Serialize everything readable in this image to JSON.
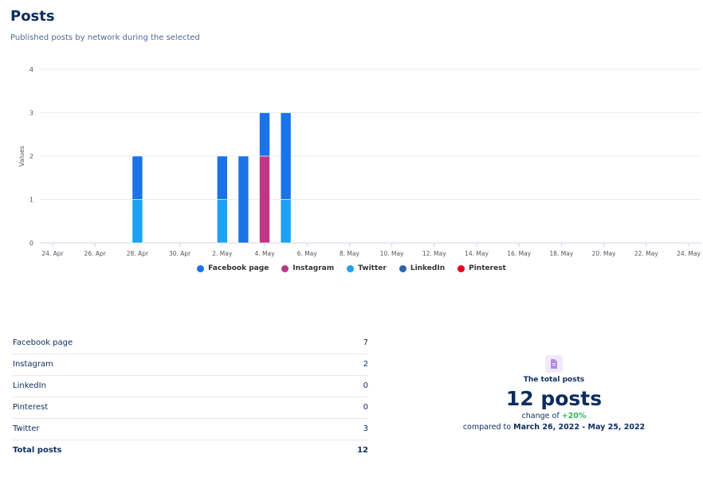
{
  "header": {
    "title": "Posts",
    "subtitle": "Published posts by network during the selected"
  },
  "chart_data": {
    "type": "bar",
    "stacked": true,
    "ylabel": "Values",
    "xlabel": "",
    "ylim": [
      0,
      4
    ],
    "yticks": [
      0,
      1,
      2,
      3,
      4
    ],
    "grid": true,
    "legend_placement": "bottom",
    "x_tick_labels": [
      "24. Apr",
      "26. Apr",
      "28. Apr",
      "30. Apr",
      "2. May",
      "4. May",
      "6. May",
      "8. May",
      "10. May",
      "12. May",
      "14. May",
      "16. May",
      "18. May",
      "20. May",
      "22. May",
      "24. May"
    ],
    "x_tick_dates": [
      "2022-04-24",
      "2022-04-26",
      "2022-04-28",
      "2022-04-30",
      "2022-05-02",
      "2022-05-04",
      "2022-05-06",
      "2022-05-08",
      "2022-05-10",
      "2022-05-12",
      "2022-05-14",
      "2022-05-16",
      "2022-05-18",
      "2022-05-20",
      "2022-05-22",
      "2022-05-24"
    ],
    "categories": [
      "2022-04-28",
      "2022-05-02",
      "2022-05-03",
      "2022-05-04",
      "2022-05-05"
    ],
    "series": [
      {
        "name": "Facebook page",
        "color": "#1a73e8",
        "values": [
          1,
          1,
          2,
          1,
          2
        ]
      },
      {
        "name": "Instagram",
        "color": "#c13584",
        "values": [
          0,
          0,
          0,
          2,
          0
        ]
      },
      {
        "name": "Twitter",
        "color": "#1da1f2",
        "values": [
          1,
          1,
          0,
          0,
          1
        ]
      },
      {
        "name": "LinkedIn",
        "color": "#2a63b0",
        "values": [
          0,
          0,
          0,
          0,
          0
        ]
      },
      {
        "name": "Pinterest",
        "color": "#e60023",
        "values": [
          0,
          0,
          0,
          0,
          0
        ]
      }
    ],
    "stack_order_bottom_to_top": [
      "Twitter",
      "Instagram",
      "LinkedIn",
      "Pinterest",
      "Facebook page"
    ]
  },
  "table": {
    "rows": [
      {
        "label": "Facebook page",
        "value": "7"
      },
      {
        "label": "Instagram",
        "value": "2"
      },
      {
        "label": "LinkedIn",
        "value": "0"
      },
      {
        "label": "Pinterest",
        "value": "0"
      },
      {
        "label": "Twitter",
        "value": "3"
      }
    ],
    "total": {
      "label": "Total posts",
      "value": "12"
    }
  },
  "summary": {
    "icon": "document-icon",
    "label": "The total posts",
    "value": "12 posts",
    "change_prefix": "change of ",
    "change": "+20%",
    "change_color": "#2eb85c",
    "compare_prefix": "compared to ",
    "compare_range": "March 26, 2022 - May 25, 2022"
  }
}
